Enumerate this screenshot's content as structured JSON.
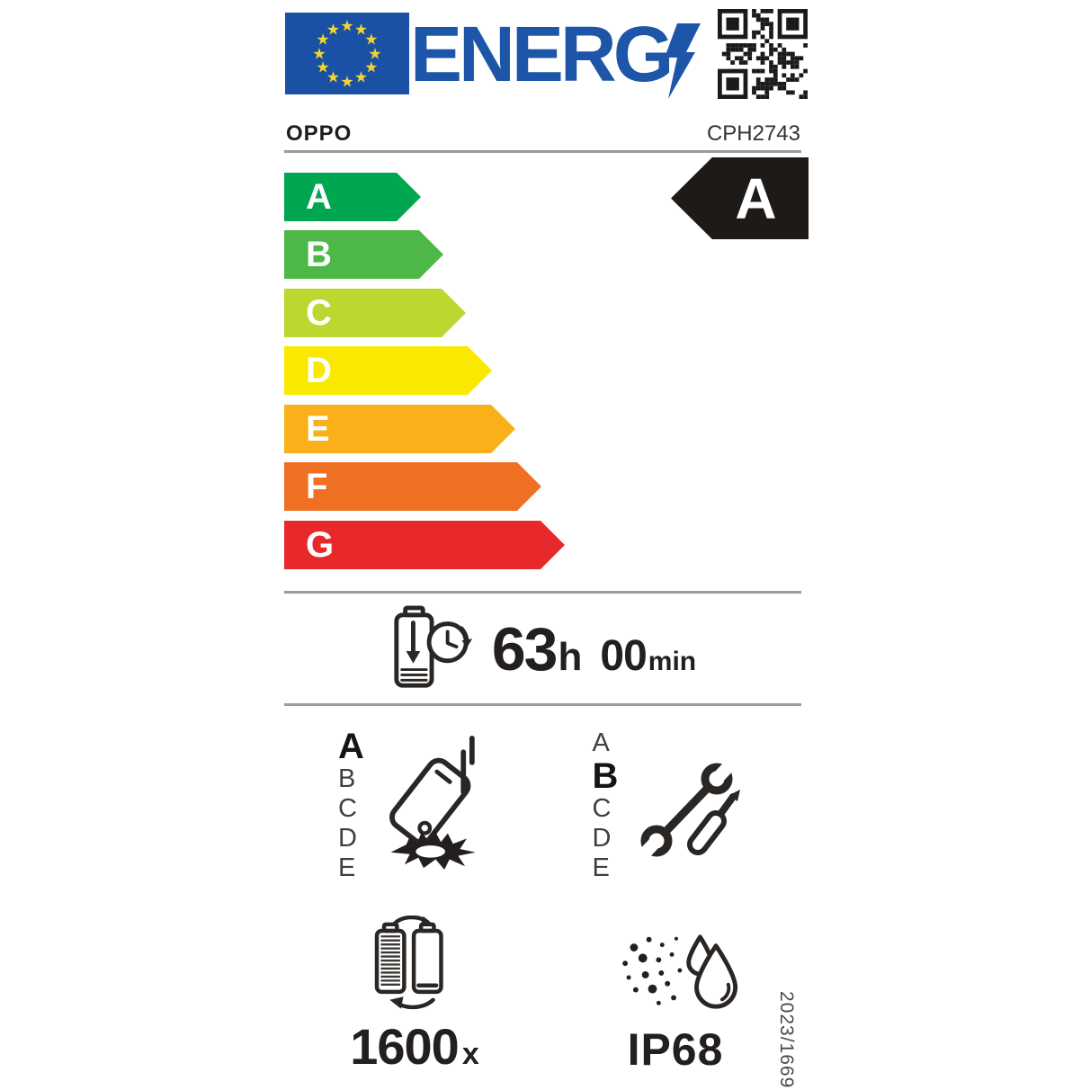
{
  "logo": {
    "text": "ENERG",
    "color": "#1d55a8"
  },
  "brand_row": {
    "brand": "OPPO",
    "model": "CPH2743"
  },
  "rating": {
    "value": "A"
  },
  "scale": [
    {
      "letter": "A",
      "color": "#00a650"
    },
    {
      "letter": "B",
      "color": "#4db848"
    },
    {
      "letter": "C",
      "color": "#bed630"
    },
    {
      "letter": "D",
      "color": "#f9e800"
    },
    {
      "letter": "E",
      "color": "#f9b019"
    },
    {
      "letter": "F",
      "color": "#f07023"
    },
    {
      "letter": "G",
      "color": "#e8292b"
    }
  ],
  "battery_life": {
    "hours": "63",
    "hours_unit": "h",
    "minutes": "00",
    "minutes_unit": "min"
  },
  "drop_resistance": {
    "scale": [
      "A",
      "B",
      "C",
      "D",
      "E"
    ],
    "rating": "A"
  },
  "repairability": {
    "scale": [
      "A",
      "B",
      "C",
      "D",
      "E"
    ],
    "rating": "B"
  },
  "battery_cycles": {
    "value": "1600",
    "unit": "x"
  },
  "ingress_protection": {
    "rating": "IP68"
  },
  "regulation_number": "2023/1669",
  "colors": {
    "eu_blue": "#1b51a5",
    "star_yellow": "#f2d530",
    "ink": "#231f20",
    "rating_black": "#1d1a18"
  }
}
